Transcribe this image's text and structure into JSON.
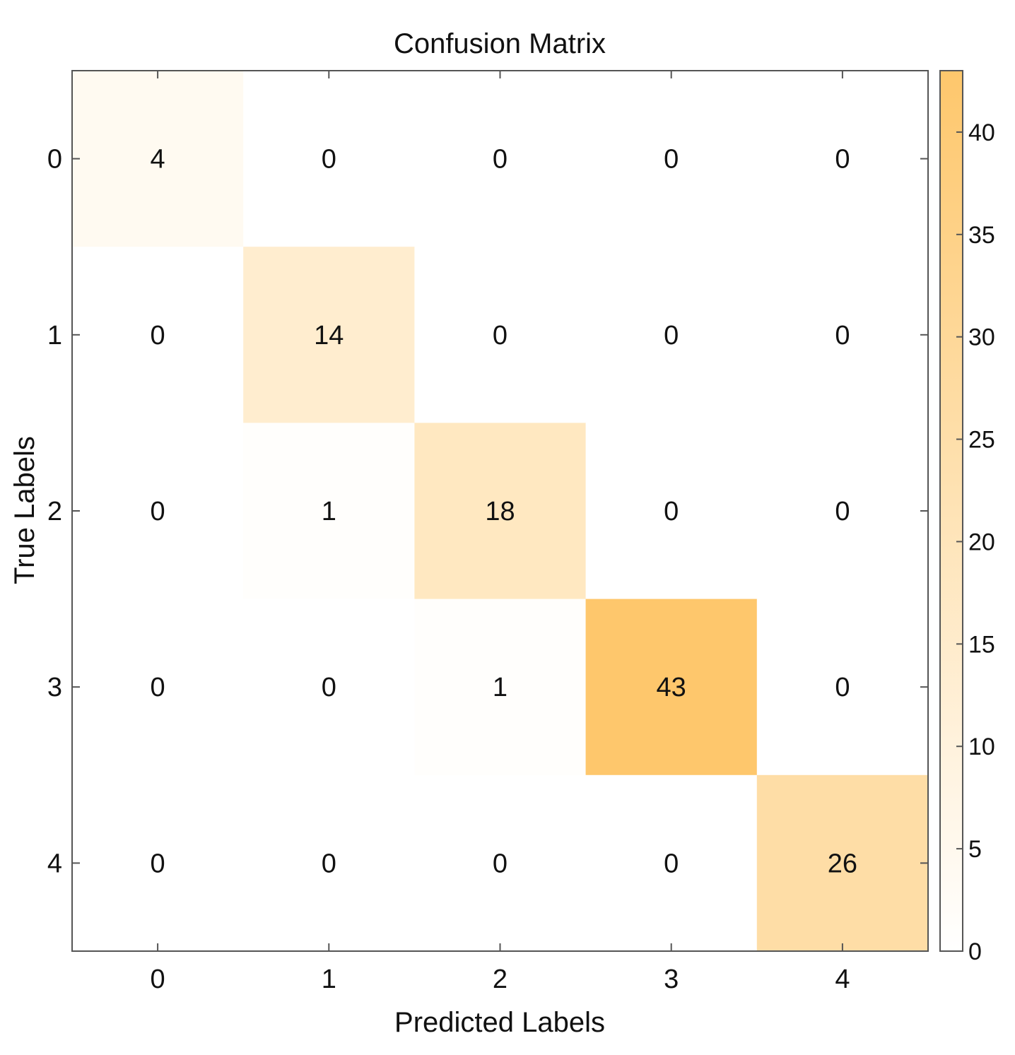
{
  "chart_data": {
    "type": "heatmap",
    "title": "Confusion Matrix",
    "xlabel": "Predicted Labels",
    "ylabel": "True Labels",
    "x_categories": [
      "0",
      "1",
      "2",
      "3",
      "4"
    ],
    "y_categories": [
      "0",
      "1",
      "2",
      "3",
      "4"
    ],
    "values": [
      [
        4,
        0,
        0,
        0,
        0
      ],
      [
        0,
        14,
        0,
        0,
        0
      ],
      [
        0,
        1,
        18,
        0,
        0
      ],
      [
        0,
        0,
        1,
        43,
        0
      ],
      [
        0,
        0,
        0,
        0,
        26
      ]
    ],
    "colorbar": {
      "min": 0,
      "max": 43,
      "ticks": [
        0,
        5,
        10,
        15,
        20,
        25,
        30,
        35,
        40
      ],
      "low_color": "#ffffff",
      "high_color": "#fec76c"
    },
    "grid": false
  }
}
